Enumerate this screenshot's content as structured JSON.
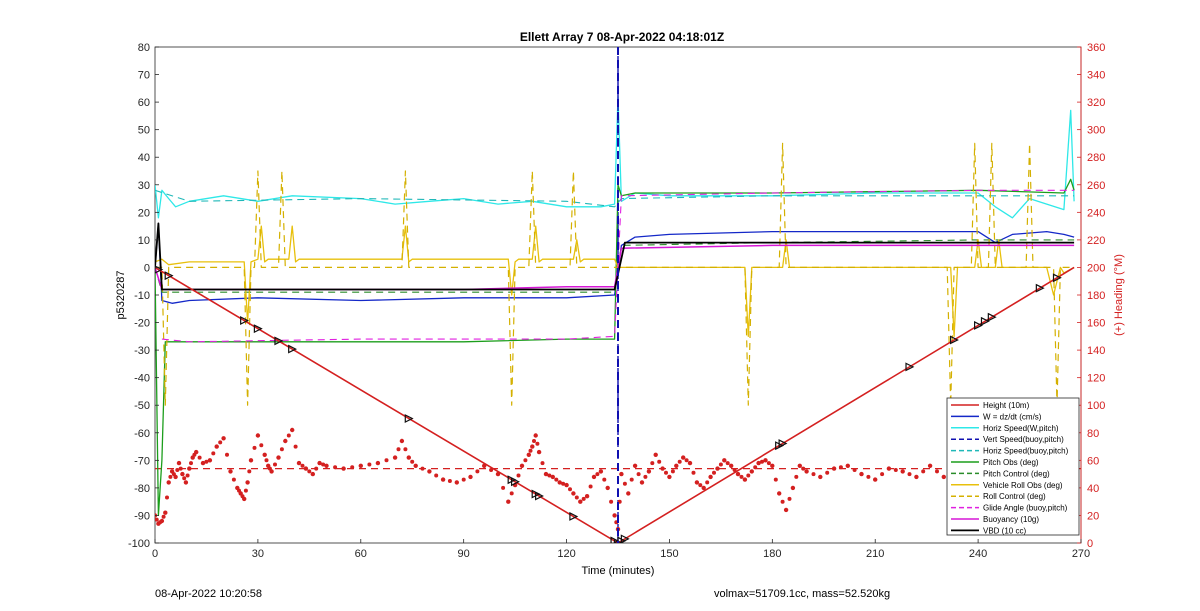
{
  "chart_data": {
    "type": "line",
    "title": "Ellett Array 7 08-Apr-2022 04:18:01Z",
    "xlabel": "Time (minutes)",
    "ylabel": "p5320287",
    "y2label": "(+) Heading (°M)",
    "xlim": [
      0,
      270
    ],
    "ylim": [
      -100,
      80
    ],
    "y2lim": [
      0,
      360
    ],
    "xticks": [
      0,
      30,
      60,
      90,
      120,
      150,
      180,
      210,
      240,
      270
    ],
    "yticks": [
      -100,
      -90,
      -80,
      -70,
      -60,
      -50,
      -40,
      -30,
      -20,
      -10,
      0,
      10,
      20,
      30,
      40,
      50,
      60,
      70,
      80
    ],
    "y2ticks": [
      0,
      20,
      40,
      60,
      80,
      100,
      120,
      140,
      160,
      180,
      200,
      220,
      240,
      260,
      280,
      300,
      320,
      340,
      360
    ],
    "legend_position": "bottom-right",
    "vertical_marker_x": 135,
    "series": [
      {
        "name": "Height (10m)",
        "color": "#d42020",
        "style": "solid",
        "width": 1.6,
        "x": [
          0,
          135,
          268
        ],
        "y": [
          0,
          -100,
          0
        ]
      },
      {
        "name": "W = dz/dt (cm/s)",
        "color": "#1428c8",
        "style": "solid",
        "width": 1.3,
        "x": [
          0,
          1,
          2,
          5,
          10,
          30,
          60,
          90,
          120,
          134,
          136,
          140,
          150,
          180,
          210,
          240,
          245,
          250,
          260,
          265,
          268
        ],
        "y": [
          0,
          16,
          -12,
          -13,
          -12,
          -11,
          -12,
          -11,
          -11,
          -10,
          8,
          11,
          12,
          13,
          13,
          13,
          9,
          12,
          13,
          12,
          11
        ]
      },
      {
        "name": "Horiz Speed(W,pitch)",
        "color": "#2ee8e8",
        "style": "solid",
        "width": 1.3,
        "x": [
          0,
          1,
          2,
          4,
          6,
          10,
          20,
          30,
          40,
          60,
          70,
          80,
          90,
          100,
          110,
          120,
          130,
          134,
          135,
          136,
          140,
          150,
          180,
          210,
          240,
          245,
          250,
          255,
          260,
          265,
          267,
          268
        ],
        "y": [
          30,
          18,
          28,
          25,
          22,
          24,
          26,
          24,
          26,
          25,
          23,
          24,
          25,
          23,
          24,
          22,
          22,
          23,
          62,
          24,
          27,
          26,
          26,
          27,
          27,
          22,
          18,
          25,
          23,
          21,
          57,
          24
        ]
      },
      {
        "name": "Vert Speed(buoy,pitch)",
        "color": "#1010b0",
        "style": "dashed",
        "width": 1.4,
        "x": [
          135,
          135
        ],
        "y": [
          -100,
          80
        ]
      },
      {
        "name": "Horiz Speed(buoy,pitch)",
        "color": "#1fb8b8",
        "style": "dashed",
        "width": 1.1,
        "x": [
          0,
          10,
          60,
          120,
          134,
          136,
          180,
          240,
          268
        ],
        "y": [
          28,
          24,
          25,
          24,
          22,
          25,
          26,
          26,
          26
        ]
      },
      {
        "name": "Pitch Obs (deg)",
        "color": "#1c9e1c",
        "style": "solid",
        "width": 1.3,
        "x": [
          0,
          1,
          2,
          3,
          5,
          10,
          30,
          60,
          90,
          120,
          134,
          135,
          136,
          140,
          180,
          240,
          265,
          267,
          268
        ],
        "y": [
          0,
          -90,
          -70,
          -27,
          -27,
          -27,
          -27,
          -27,
          -27,
          -26,
          -26,
          30,
          26,
          27,
          27,
          28,
          27,
          32,
          28
        ]
      },
      {
        "name": "Pitch Control (deg)",
        "color": "#2a8c2a",
        "style": "dashed",
        "width": 1.1,
        "x": [
          0,
          2,
          10,
          60,
          120,
          134,
          136,
          180,
          240,
          268
        ],
        "y": [
          0,
          -9,
          -9,
          -9,
          -9,
          -9,
          8,
          9,
          10,
          10
        ]
      },
      {
        "name": "Vehicle Roll Obs (deg)",
        "color": "#e8c00c",
        "style": "solid",
        "width": 1.3,
        "x": [
          0,
          2,
          4,
          10,
          26,
          27,
          28,
          30,
          31,
          32,
          33,
          39,
          40,
          41,
          42,
          72,
          73,
          74,
          75,
          103,
          104,
          105,
          106,
          110,
          111,
          112,
          113,
          122,
          123,
          124,
          125,
          134,
          135,
          136,
          172,
          173,
          174,
          175,
          183,
          184,
          185,
          232,
          233,
          234,
          239,
          240,
          241,
          245,
          246,
          247,
          260,
          262,
          264,
          265,
          268
        ],
        "y": [
          2,
          3,
          1,
          2,
          2,
          -20,
          2,
          3,
          15,
          2,
          3,
          3,
          15,
          2,
          3,
          3,
          15,
          2,
          3,
          3,
          -10,
          2,
          3,
          3,
          15,
          2,
          3,
          3,
          10,
          2,
          3,
          3,
          0,
          0,
          0,
          -25,
          0,
          0,
          0,
          10,
          0,
          0,
          -25,
          0,
          0,
          10,
          0,
          0,
          10,
          0,
          0,
          -10,
          0,
          -2,
          0
        ]
      },
      {
        "name": "Roll Control (deg)",
        "color": "#d4b000",
        "style": "dashed",
        "width": 1.2,
        "x": [
          0,
          2,
          3,
          4,
          26,
          27,
          28,
          29,
          30,
          31,
          32,
          36,
          37,
          38,
          39,
          72,
          73,
          74,
          75,
          103,
          104,
          105,
          106,
          109,
          110,
          111,
          112,
          121,
          122,
          123,
          124,
          134,
          135,
          136,
          172,
          173,
          174,
          175,
          182,
          183,
          184,
          185,
          231,
          232,
          233,
          234,
          238,
          239,
          240,
          241,
          243,
          244,
          245,
          246,
          254,
          255,
          256,
          257,
          262,
          263,
          264,
          265,
          268
        ],
        "y": [
          0,
          0,
          -50,
          0,
          0,
          -50,
          0,
          0,
          35,
          0,
          0,
          0,
          35,
          0,
          0,
          0,
          35,
          0,
          0,
          0,
          -50,
          0,
          0,
          0,
          35,
          0,
          0,
          0,
          35,
          0,
          0,
          0,
          0,
          0,
          0,
          -50,
          0,
          0,
          0,
          45,
          0,
          0,
          0,
          -50,
          0,
          0,
          0,
          45,
          0,
          0,
          0,
          45,
          0,
          0,
          0,
          45,
          0,
          0,
          0,
          -50,
          0,
          0,
          0
        ]
      },
      {
        "name": "Glide Angle (buoy,pitch)",
        "color": "#e020e0",
        "style": "dashed",
        "width": 1.1,
        "x": [
          2,
          10,
          60,
          120,
          134,
          136,
          180,
          240,
          268
        ],
        "y": [
          -26,
          -27,
          -26,
          -26,
          -25,
          26,
          27,
          28,
          28
        ]
      },
      {
        "name": "Buoyancy (10g)",
        "color": "#d616d6",
        "style": "solid",
        "width": 1.5,
        "x": [
          0,
          2,
          30,
          60,
          90,
          120,
          134,
          136,
          180,
          240,
          268
        ],
        "y": [
          0,
          -8,
          -8,
          -8,
          -8,
          -7,
          -7,
          7,
          8,
          8,
          8
        ]
      },
      {
        "name": "VBD (10 cc)",
        "color": "#000000",
        "style": "solid",
        "width": 1.8,
        "x": [
          0,
          1,
          2,
          134,
          137,
          268
        ],
        "y": [
          0,
          16,
          -8,
          -8,
          9,
          9
        ]
      }
    ],
    "heading_series": {
      "name": "Heading (°M)",
      "axis": "right",
      "color": "#d42020",
      "x": [
        0,
        1,
        2,
        3,
        4,
        5,
        6,
        7,
        8,
        9,
        10,
        11,
        12,
        14,
        16,
        18,
        20,
        22,
        24,
        25,
        26,
        27,
        28,
        30,
        32,
        33,
        34,
        36,
        38,
        40,
        42,
        44,
        46,
        48,
        50,
        55,
        60,
        65,
        70,
        72,
        74,
        76,
        80,
        84,
        88,
        92,
        96,
        100,
        103,
        105,
        107,
        109,
        110,
        111,
        112,
        114,
        116,
        118,
        120,
        122,
        124,
        126,
        128,
        130,
        132,
        134,
        135,
        136,
        138,
        140,
        142,
        144,
        146,
        148,
        150,
        152,
        154,
        156,
        158,
        160,
        162,
        164,
        166,
        168,
        170,
        172,
        174,
        176,
        178,
        180,
        182,
        184,
        186,
        188,
        190,
        194,
        198,
        202,
        206,
        210,
        214,
        218,
        222,
        226,
        230,
        234,
        238,
        242,
        246,
        250,
        254,
        258,
        262,
        266,
        268
      ],
      "y": [
        20,
        14,
        16,
        22,
        44,
        52,
        48,
        58,
        50,
        44,
        54,
        62,
        66,
        58,
        60,
        70,
        76,
        52,
        40,
        36,
        32,
        44,
        60,
        78,
        64,
        56,
        52,
        62,
        74,
        82,
        58,
        54,
        50,
        58,
        56,
        54,
        56,
        58,
        62,
        74,
        62,
        56,
        52,
        46,
        44,
        48,
        56,
        50,
        30,
        42,
        56,
        64,
        70,
        78,
        66,
        50,
        48,
        44,
        42,
        36,
        30,
        34,
        48,
        52,
        40,
        20,
        10,
        50,
        36,
        56,
        44,
        52,
        64,
        54,
        48,
        56,
        62,
        58,
        44,
        40,
        48,
        54,
        60,
        56,
        50,
        46,
        52,
        58,
        60,
        56,
        36,
        24,
        40,
        56,
        52,
        48,
        54,
        56,
        50,
        46,
        54,
        52,
        48,
        56,
        48,
        56,
        60,
        64,
        60,
        54,
        50,
        46,
        58,
        56,
        44
      ],
      "mean": 54
    },
    "height_markers_x": [
      1,
      4,
      26,
      30,
      36,
      40,
      74,
      104,
      105,
      111,
      112,
      122,
      134,
      135,
      136,
      137,
      182,
      183,
      220,
      233,
      240,
      242,
      244,
      258,
      263
    ]
  },
  "footer": {
    "date": "08-Apr-2022 10:20:58",
    "meta": "volmax=51709.1cc, mass=52.520kg"
  }
}
